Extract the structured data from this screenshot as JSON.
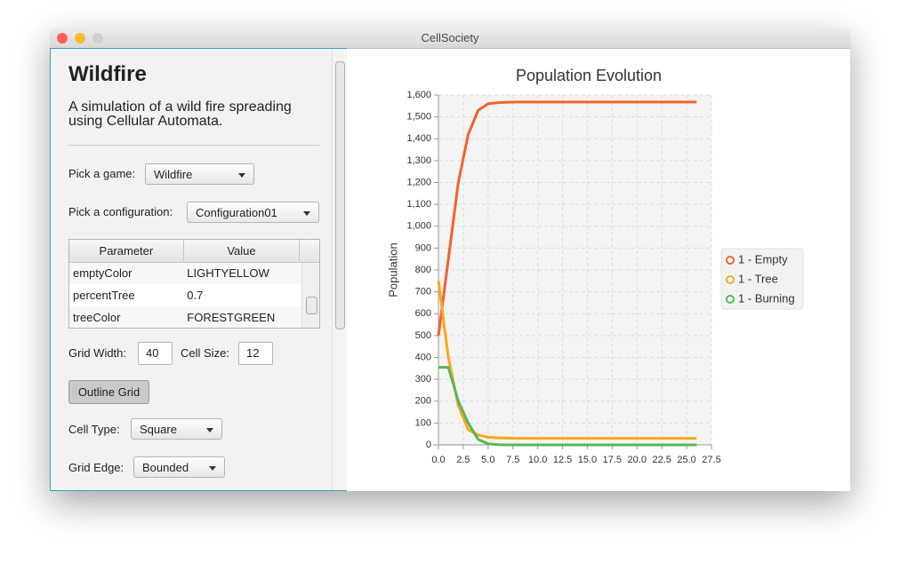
{
  "window": {
    "title": "CellSociety"
  },
  "sidebar": {
    "title": "Wildfire",
    "description": "A simulation of a wild fire spreading using Cellular Automata.",
    "game_label": "Pick a game:",
    "game_value": "Wildfire",
    "config_label": "Pick a configuration:",
    "config_value": "Configuration01",
    "table": {
      "headers": [
        "Parameter",
        "Value"
      ],
      "rows": [
        [
          "emptyColor",
          "LIGHTYELLOW"
        ],
        [
          "percentTree",
          "0.7"
        ],
        [
          "treeColor",
          "FORESTGREEN"
        ]
      ]
    },
    "grid_width_label": "Grid Width:",
    "grid_width_value": 40,
    "cell_size_label": "Cell Size:",
    "cell_size_value": 12,
    "outline_button": "Outline Grid",
    "cell_type_label": "Cell Type:",
    "cell_type_value": "Square",
    "grid_edge_label": "Grid Edge:",
    "grid_edge_value": "Bounded"
  },
  "chart_data": {
    "type": "line",
    "title": "Population Evolution",
    "y_label": "Population",
    "x": [
      0,
      1,
      2,
      3,
      4,
      5,
      6,
      7,
      8,
      9,
      10,
      11,
      12,
      13,
      14,
      15,
      16,
      17,
      18,
      19,
      20,
      21,
      22,
      23,
      24,
      25,
      26
    ],
    "series": [
      {
        "name": "1 - Empty",
        "color": "#f3622d",
        "values": [
          500,
          850,
          1200,
          1420,
          1530,
          1560,
          1565,
          1567,
          1568,
          1568,
          1568,
          1568,
          1568,
          1568,
          1568,
          1568,
          1568,
          1568,
          1568,
          1568,
          1568,
          1568,
          1568,
          1568,
          1568,
          1568,
          1568
        ]
      },
      {
        "name": "1 - Tree",
        "color": "#fba71b",
        "values": [
          750,
          400,
          180,
          70,
          45,
          35,
          32,
          31,
          30,
          30,
          30,
          30,
          30,
          30,
          30,
          30,
          30,
          30,
          30,
          30,
          30,
          30,
          30,
          30,
          30,
          30,
          30
        ]
      },
      {
        "name": "1 - Burning",
        "color": "#57b757",
        "values": [
          355,
          355,
          200,
          100,
          25,
          5,
          1,
          0,
          0,
          0,
          0,
          0,
          0,
          0,
          0,
          0,
          0,
          0,
          0,
          0,
          0,
          0,
          0,
          0,
          0,
          0,
          0
        ]
      }
    ],
    "xlim": [
      0,
      27.5
    ],
    "xticks": [
      {
        "value": 0,
        "label": "0.0"
      },
      2.5,
      {
        "value": 5,
        "label": "5.0"
      },
      7.5,
      {
        "value": 10,
        "label": "10.0"
      },
      12.5,
      {
        "value": 15,
        "label": "15.0"
      },
      17.5,
      {
        "value": 20,
        "label": "20.0"
      },
      22.5,
      {
        "value": 25,
        "label": "25.0"
      },
      27.5
    ],
    "ylim": [
      0,
      1600
    ],
    "yticks": [
      0,
      100,
      200,
      300,
      400,
      500,
      600,
      700,
      800,
      900,
      {
        "value": 1000,
        "label": "1,000"
      },
      {
        "value": 1100,
        "label": "1,100"
      },
      {
        "value": 1200,
        "label": "1,200"
      },
      {
        "value": 1300,
        "label": "1,300"
      },
      {
        "value": 1400,
        "label": "1,400"
      },
      {
        "value": 1500,
        "label": "1,500"
      },
      {
        "value": 1600,
        "label": "1,600"
      }
    ],
    "grid": true,
    "legend": "right"
  }
}
